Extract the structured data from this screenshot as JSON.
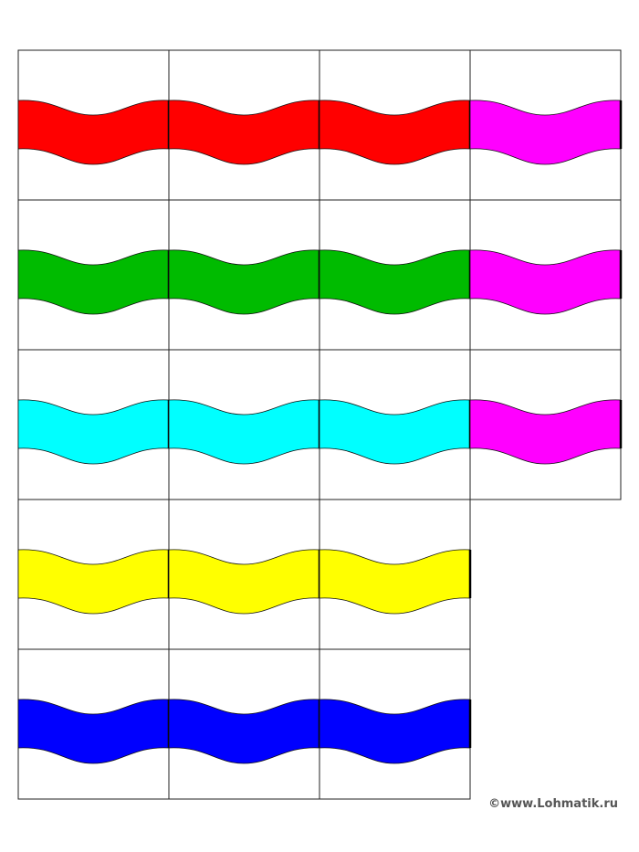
{
  "footer": {
    "watermark": "©www.Lohmatik.ru"
  }
}
